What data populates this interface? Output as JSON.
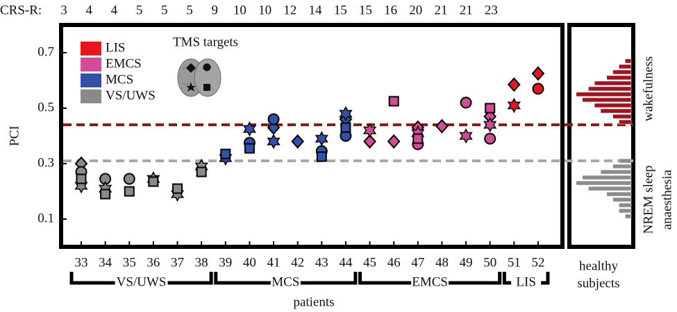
{
  "chart_data": {
    "type": "scatter",
    "crs_label": "CRS-R:",
    "y_label": "PCI",
    "x_label": "patients",
    "inset_title": "TMS targets",
    "ylim": [
      0,
      0.8
    ],
    "yticks": [
      0.1,
      0.3,
      0.5,
      0.7
    ],
    "groups": [
      {
        "name": "VS/UWS",
        "color": "#8a8a8a",
        "patients": [
          "33",
          "34",
          "35",
          "36",
          "37",
          "38"
        ],
        "crs_r": [
          3,
          4,
          4,
          5,
          5,
          5
        ]
      },
      {
        "name": "MCS",
        "color": "#3152a8",
        "patients": [
          "39",
          "40",
          "41",
          "42",
          "43",
          "44"
        ],
        "crs_r": [
          9,
          10,
          10,
          12,
          14,
          15
        ]
      },
      {
        "name": "EMCS",
        "color": "#d24c98",
        "patients": [
          "45",
          "46",
          "47",
          "48",
          "49",
          "50"
        ],
        "crs_r": [
          15,
          16,
          20,
          21,
          21,
          23
        ]
      },
      {
        "name": "LIS",
        "color": "#e8141e",
        "patients": [
          "51",
          "52"
        ],
        "crs_r": [
          null,
          null
        ]
      }
    ],
    "series": [
      {
        "marker": "diamond",
        "values": [
          0.3,
          null,
          null,
          null,
          null,
          null,
          null,
          null,
          0.43,
          0.38,
          null,
          0.46,
          0.38,
          0.38,
          0.43,
          0.435,
          null,
          0.47,
          0.585,
          0.625
        ]
      },
      {
        "marker": "circle",
        "values": [
          0.27,
          0.245,
          0.245,
          null,
          null,
          null,
          null,
          0.375,
          0.46,
          null,
          0.345,
          0.4,
          null,
          null,
          0.37,
          null,
          0.52,
          0.39,
          null,
          0.57
        ]
      },
      {
        "marker": "star",
        "values": [
          0.22,
          0.21,
          null,
          0.245,
          0.19,
          0.29,
          0.32,
          0.425,
          0.38,
          null,
          0.39,
          0.48,
          0.42,
          null,
          0.41,
          null,
          0.4,
          0.44,
          0.51,
          null
        ]
      },
      {
        "marker": "square",
        "values": [
          0.245,
          0.19,
          0.2,
          0.235,
          0.21,
          0.27,
          0.335,
          0.355,
          null,
          null,
          0.325,
          0.43,
          null,
          0.525,
          0.39,
          null,
          null,
          0.5,
          null,
          null
        ]
      }
    ],
    "thresholds": [
      {
        "value": 0.44,
        "color": "#8b1a1a"
      },
      {
        "value": 0.31,
        "color": "#a8a8a8"
      }
    ],
    "healthy": {
      "title": [
        "healthy",
        "subjects"
      ],
      "count_lim": [
        0,
        10
      ],
      "series": [
        {
          "name": "wakefulness",
          "color": "#a3121c",
          "bins": [
            0.44,
            0.46,
            0.48,
            0.5,
            0.52,
            0.54,
            0.56,
            0.58,
            0.6,
            0.62,
            0.64,
            0.66,
            0.68
          ],
          "counts": [
            2,
            3,
            5,
            6,
            8,
            9,
            7,
            6,
            4,
            3,
            2,
            1
          ]
        },
        {
          "name": "NREM sleep",
          "name2": "anaesthesia",
          "color": "#8c8c8c",
          "bins": [
            0.1,
            0.12,
            0.14,
            0.16,
            0.18,
            0.2,
            0.22,
            0.24,
            0.26,
            0.28,
            0.3,
            0.32
          ],
          "counts": [
            1,
            2,
            2,
            3,
            4,
            7,
            9,
            8,
            5,
            3,
            2
          ]
        }
      ]
    }
  }
}
